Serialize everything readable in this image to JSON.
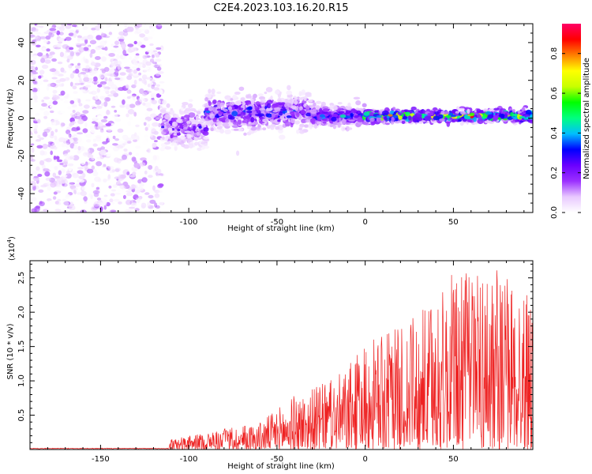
{
  "title": "C2E4.2023.103.16.20.R15",
  "chart_data": [
    {
      "type": "heatmap",
      "xlabel": "Height of straight line (km)",
      "ylabel": "Frequency (Hz)",
      "xlim": [
        -190,
        95
      ],
      "ylim": [
        -50,
        50
      ],
      "x_ticks": [
        -150,
        -100,
        -50,
        0,
        50
      ],
      "y_ticks": [
        -40,
        -20,
        0,
        20,
        40
      ],
      "grid": false,
      "colorbar": {
        "label": "Normalized spectral amplitude",
        "range": [
          0.0,
          0.95
        ],
        "ticks": [
          0.0,
          0.2,
          0.4,
          0.6,
          0.8
        ],
        "colors": [
          "#ffffff",
          "#e8c8ff",
          "#9b30ff",
          "#6a00ff",
          "#0000ff",
          "#00bfff",
          "#00ff80",
          "#00ff00",
          "#c8ff00",
          "#ffff00",
          "#ff8000",
          "#ff0000",
          "#ff0066"
        ]
      },
      "regions": [
        {
          "x": [
            -190,
            -115
          ],
          "freq_center": 0,
          "freq_spread": 50,
          "amplitude": [
            0.0,
            0.15
          ],
          "description": "broadband noise"
        },
        {
          "x": [
            -115,
            -90
          ],
          "freq_center": -5,
          "freq_spread": 10,
          "amplitude": [
            0.05,
            0.3
          ]
        },
        {
          "x": [
            -90,
            -30
          ],
          "freq_center": 3,
          "freq_spread": 9,
          "amplitude": [
            0.1,
            0.4
          ]
        },
        {
          "x": [
            -30,
            0
          ],
          "freq_center": 1,
          "freq_spread": 5,
          "amplitude": [
            0.15,
            0.45
          ]
        },
        {
          "x": [
            0,
            95
          ],
          "freq_center": 1,
          "freq_spread": 3,
          "amplitude": [
            0.2,
            0.9
          ]
        }
      ]
    },
    {
      "type": "line",
      "xlabel": "Height of straight line (km)",
      "ylabel": "SNR (10 * v/v)",
      "y_multiplier": "(x10⁴)",
      "y_multiplier_base": "(x10",
      "y_multiplier_exp": "4",
      "y_multiplier_close": ")",
      "xlim": [
        -190,
        95
      ],
      "ylim": [
        0,
        2.75
      ],
      "x_ticks": [
        -150,
        -100,
        -50,
        0,
        50
      ],
      "y_ticks": [
        0.5,
        1.0,
        1.5,
        2.0,
        2.5
      ],
      "y_tick_labels": [
        "0.5",
        "1.0",
        "1.5",
        "2.0",
        "2.5"
      ],
      "color": "#ee2222",
      "envelope": [
        {
          "x": -190,
          "y": 0.02
        },
        {
          "x": -112,
          "y": 0.02
        },
        {
          "x": -110,
          "y": 0.15
        },
        {
          "x": -90,
          "y": 0.25
        },
        {
          "x": -60,
          "y": 0.4
        },
        {
          "x": -40,
          "y": 0.8
        },
        {
          "x": -20,
          "y": 1.0
        },
        {
          "x": -10,
          "y": 1.2
        },
        {
          "x": 0,
          "y": 1.55
        },
        {
          "x": 20,
          "y": 1.8
        },
        {
          "x": 40,
          "y": 2.2
        },
        {
          "x": 50,
          "y": 2.6
        },
        {
          "x": 70,
          "y": 2.7
        },
        {
          "x": 95,
          "y": 2.3
        }
      ]
    }
  ]
}
